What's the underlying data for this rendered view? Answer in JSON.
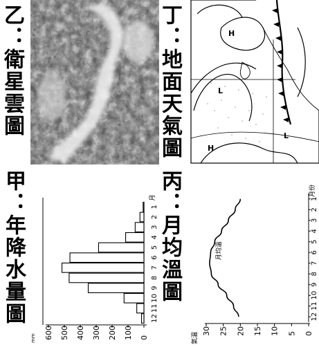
{
  "panels": {
    "rain": {
      "caption": "甲：年降水量圖",
      "unit": "mm",
      "y_ticks": [
        "600",
        "500",
        "400",
        "300",
        "200",
        "100",
        "0"
      ],
      "x_ticks": [
        "1",
        "2",
        "3",
        "4",
        "5",
        "6",
        "7",
        "8",
        "9",
        "10",
        "11",
        "12"
      ],
      "x_unit": "月"
    },
    "satellite": {
      "caption": "乙：衛星雲圖"
    },
    "temp": {
      "caption": "丙：月均溫圖",
      "y_label": "氣溫",
      "y_ticks": [
        "30",
        "25",
        "20",
        "15",
        "10",
        "5",
        "0"
      ],
      "x_ticks": [
        "1",
        "2",
        "3",
        "4",
        "5",
        "6",
        "7",
        "8",
        "9",
        "10",
        "11",
        "12"
      ],
      "x_unit": "月份",
      "curve_label": "月均溫"
    },
    "weather_map": {
      "caption": "丁：地面天氣圖",
      "high_labels": [
        "H",
        "H"
      ],
      "low_labels": [
        "L",
        "L"
      ]
    }
  },
  "chart_data": [
    {
      "type": "bar",
      "categories": [
        "1",
        "2",
        "3",
        "4",
        "5",
        "6",
        "7",
        "8",
        "9",
        "10",
        "11",
        "12"
      ],
      "values": [
        5,
        25,
        55,
        115,
        285,
        465,
        515,
        470,
        350,
        125,
        45,
        15
      ],
      "ylabel": "mm",
      "ylim": [
        0,
        600
      ]
    },
    {
      "type": "line",
      "x": [
        1,
        2,
        3,
        4,
        5,
        6,
        7,
        8,
        9,
        10,
        11,
        12
      ],
      "y": [
        20,
        21.5,
        23.5,
        25.5,
        27.5,
        28.7,
        29,
        28.5,
        26.5,
        24,
        22,
        20.5
      ],
      "ylabel": "氣溫",
      "xlabel": "月份",
      "ylim": [
        0,
        30
      ]
    }
  ]
}
